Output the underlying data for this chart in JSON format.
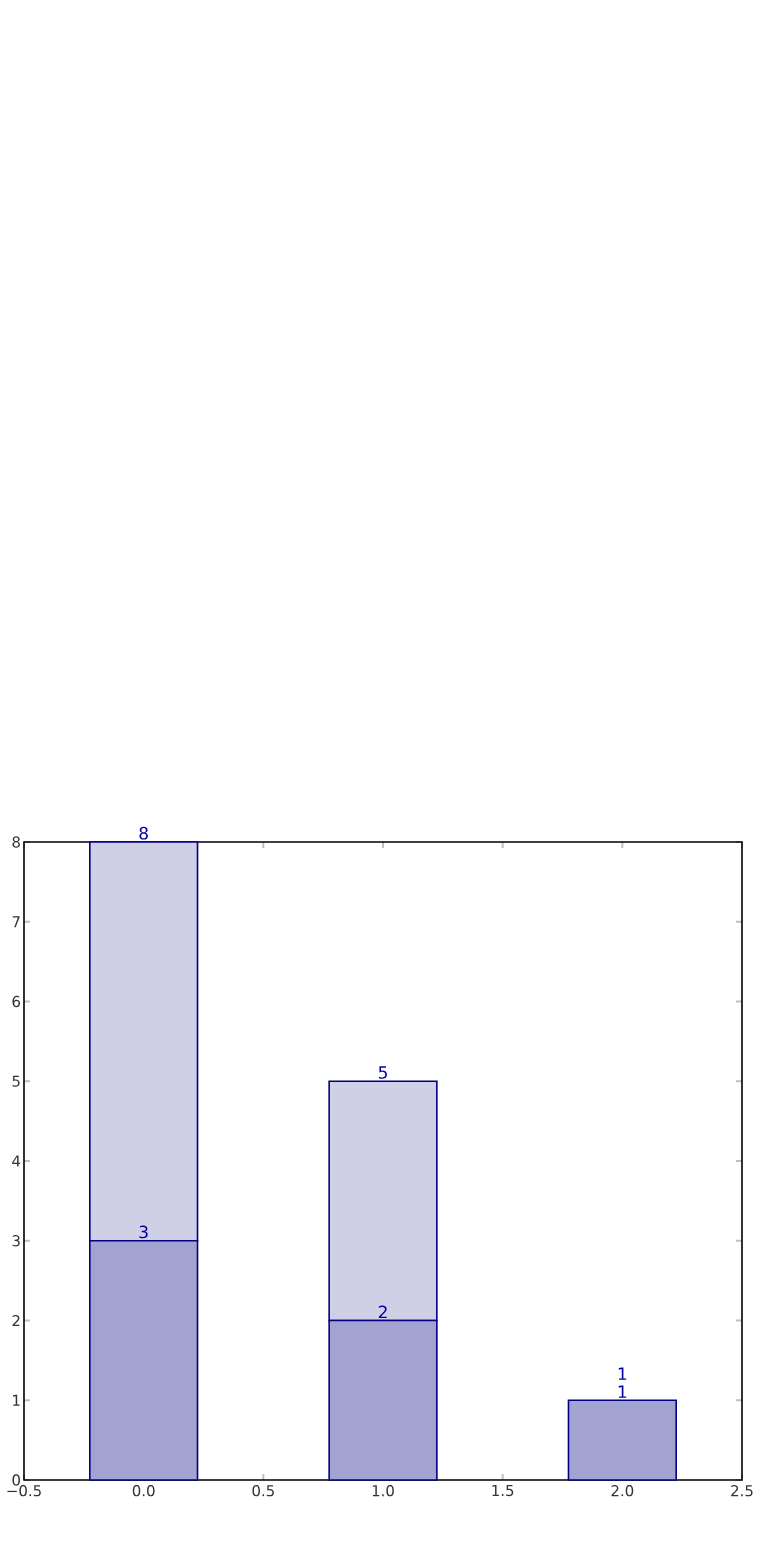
{
  "chart_data": {
    "type": "bar",
    "stacked": true,
    "x": [
      0,
      1,
      2
    ],
    "series": [
      {
        "color": "#a3a3d1",
        "values": [
          3,
          2,
          1
        ],
        "value_labels": [
          "3",
          "2",
          "1"
        ]
      },
      {
        "color": "#cfcfe6",
        "values": [
          5,
          3,
          0
        ]
      }
    ],
    "totals": [
      "8",
      "5",
      "1"
    ],
    "xlim": [
      -0.5,
      2.5
    ],
    "xticks": [
      {
        "value": -0.5,
        "label": "−0.5"
      },
      {
        "value": 0,
        "label": "0.0"
      },
      {
        "value": 0.5,
        "label": "0.5"
      },
      {
        "value": 1,
        "label": "1.0"
      },
      {
        "value": 1.5,
        "label": "1.5"
      },
      {
        "value": 2,
        "label": "2.0"
      },
      {
        "value": 2.5,
        "label": "2.5"
      }
    ],
    "ylim": [
      0,
      8
    ],
    "yticks": [
      0,
      1,
      2,
      3,
      4,
      5,
      6,
      7,
      8
    ]
  }
}
